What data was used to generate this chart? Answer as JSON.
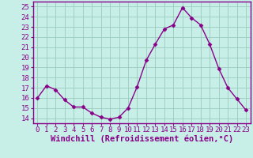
{
  "x": [
    0,
    1,
    2,
    3,
    4,
    5,
    6,
    7,
    8,
    9,
    10,
    11,
    12,
    13,
    14,
    15,
    16,
    17,
    18,
    19,
    20,
    21,
    22,
    23
  ],
  "y": [
    16.0,
    17.2,
    16.8,
    15.8,
    15.1,
    15.1,
    14.5,
    14.1,
    13.9,
    14.1,
    15.0,
    17.1,
    19.7,
    21.3,
    22.8,
    23.2,
    24.9,
    23.9,
    23.2,
    21.3,
    18.9,
    17.0,
    15.9,
    14.8
  ],
  "line_color": "#880088",
  "marker": "D",
  "marker_size": 2.5,
  "bg_color": "#c8eee8",
  "grid_color": "#99ccbb",
  "xlabel": "Windchill (Refroidissement éolien,°C)",
  "xlim": [
    -0.5,
    23.5
  ],
  "ylim": [
    13.5,
    25.5
  ],
  "yticks": [
    14,
    15,
    16,
    17,
    18,
    19,
    20,
    21,
    22,
    23,
    24,
    25
  ],
  "xticks": [
    0,
    1,
    2,
    3,
    4,
    5,
    6,
    7,
    8,
    9,
    10,
    11,
    12,
    13,
    14,
    15,
    16,
    17,
    18,
    19,
    20,
    21,
    22,
    23
  ],
  "tick_fontsize": 6.5,
  "xlabel_fontsize": 7.5,
  "spine_color": "#880088",
  "line_width": 1.0
}
